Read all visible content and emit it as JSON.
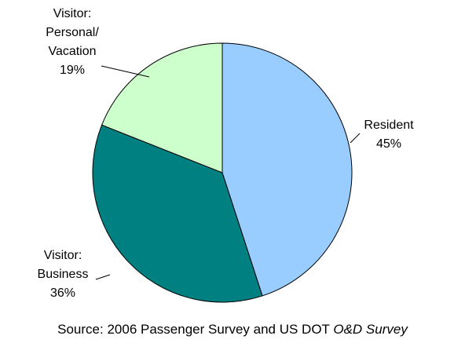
{
  "chart_data": {
    "type": "pie",
    "categories": [
      "Resident",
      "Visitor:\nBusiness",
      "Visitor:\nPersonal/\nVacation"
    ],
    "values": [
      45,
      36,
      19
    ],
    "value_labels": [
      "45%",
      "36%",
      "19%"
    ],
    "colors": [
      "#99ccff",
      "#008080",
      "#ccffcc"
    ],
    "source": "Source: 2006 Passenger Survey and US DOT",
    "source_italic": "O&D Survey"
  }
}
